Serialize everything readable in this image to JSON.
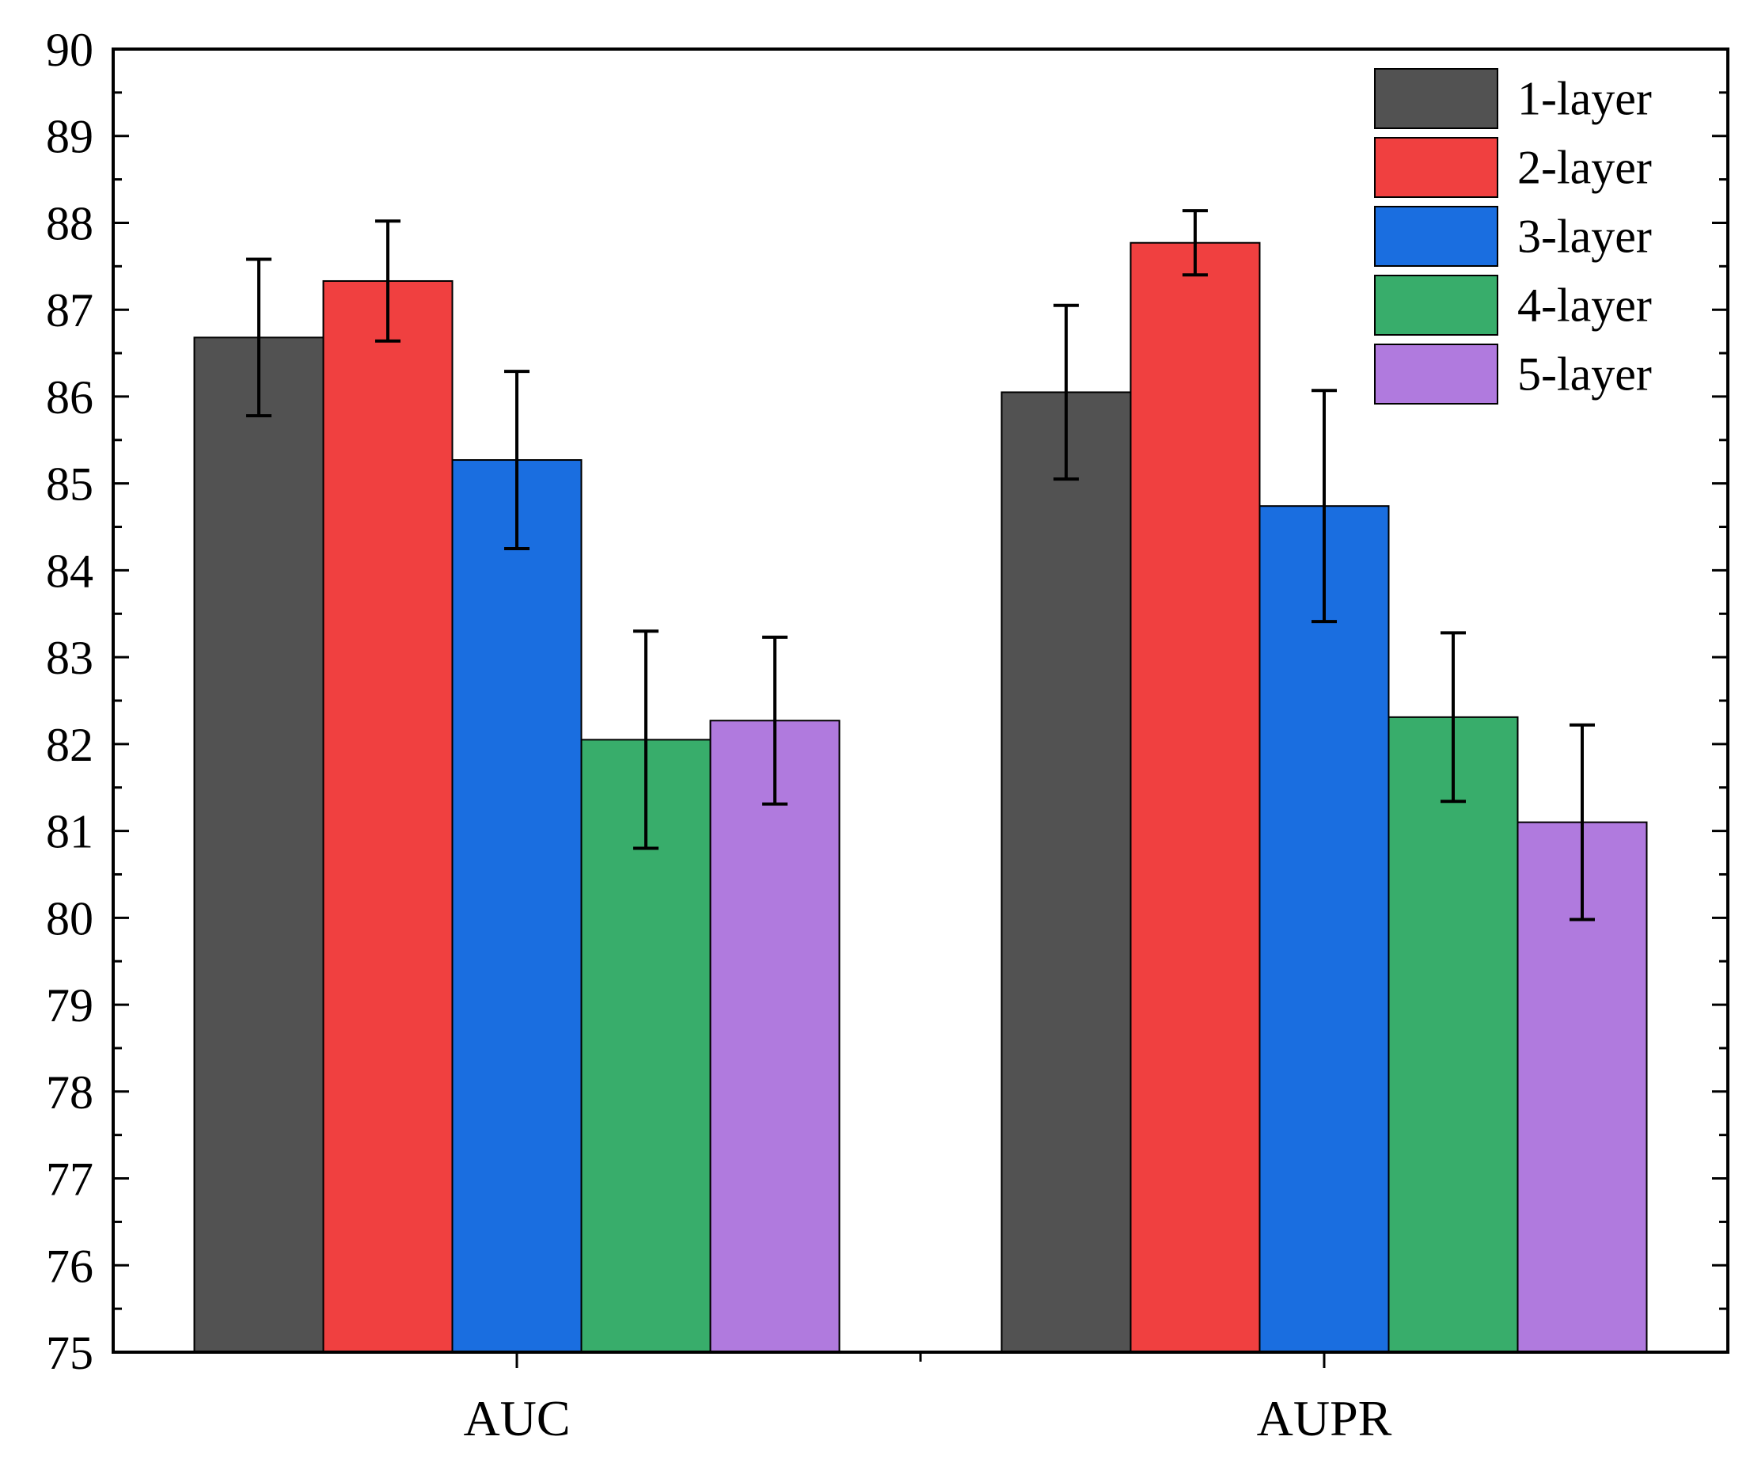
{
  "chart_data": {
    "type": "bar",
    "categories": [
      "AUC",
      "AUPR"
    ],
    "series": [
      {
        "name": "1-layer",
        "color": "#525252",
        "values": [
          86.68,
          86.05
        ],
        "errors": [
          0.9,
          1.0
        ]
      },
      {
        "name": "2-layer",
        "color": "#f04040",
        "values": [
          87.33,
          87.77
        ],
        "errors": [
          0.69,
          0.37
        ]
      },
      {
        "name": "3-layer",
        "color": "#1a6ee0",
        "values": [
          85.27,
          84.74
        ],
        "errors": [
          1.02,
          1.33
        ]
      },
      {
        "name": "4-layer",
        "color": "#38ad6b",
        "values": [
          82.05,
          82.31
        ],
        "errors": [
          1.25,
          0.97
        ]
      },
      {
        "name": "5-layer",
        "color": "#b07ade",
        "values": [
          82.27,
          81.1
        ],
        "errors": [
          0.96,
          1.12
        ]
      }
    ],
    "title": "",
    "xlabel": "",
    "ylabel": "",
    "ylim": [
      75,
      90
    ],
    "yticks": [
      "75",
      "76",
      "77",
      "78",
      "79",
      "80",
      "81",
      "82",
      "83",
      "84",
      "85",
      "86",
      "87",
      "88",
      "89",
      "90"
    ],
    "grid": false,
    "legend_position": "top-right"
  }
}
